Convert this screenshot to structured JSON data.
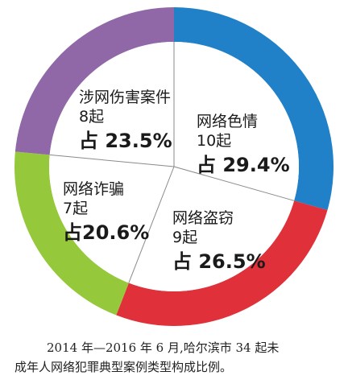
{
  "chart_data": {
    "type": "pie",
    "style": "donut",
    "slices": [
      {
        "category": "网络色情",
        "count": "10起",
        "percent": 29.4,
        "percent_label": "占 29.4%",
        "color": "#2080c8"
      },
      {
        "category": "网络盗窃",
        "count": "9起",
        "percent": 26.5,
        "percent_label": "占 26.5%",
        "color": "#e0303a"
      },
      {
        "category": "网络诈骗",
        "count": "7起",
        "percent": 20.6,
        "percent_label": "占20.6%",
        "color": "#96c83c"
      },
      {
        "category": "涉网伤害案件",
        "count": "8起",
        "percent": 23.5,
        "percent_label": "占 23.5%",
        "color": "#9068a8"
      }
    ]
  },
  "caption": {
    "line1": "2014 年—2016 年 6 月,哈尔滨市 34 起未",
    "line2": "成年人网络犯罪典型案例类型构成比例。"
  }
}
